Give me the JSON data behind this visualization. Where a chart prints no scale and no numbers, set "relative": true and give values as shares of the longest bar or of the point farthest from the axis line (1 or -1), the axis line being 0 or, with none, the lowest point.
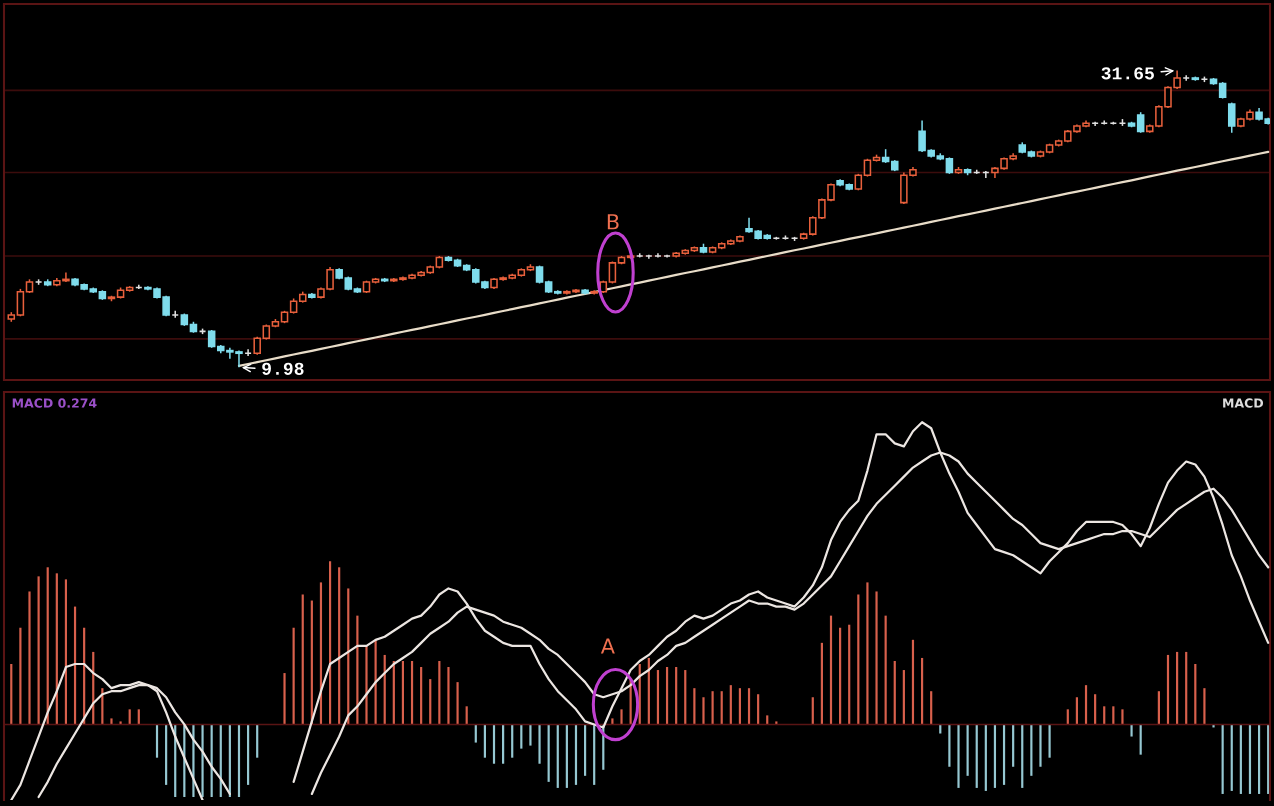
{
  "chart_data": [
    {
      "type": "candlestick",
      "categories": [
        null,
        null,
        null,
        null,
        null,
        null,
        null,
        null,
        null,
        null,
        null,
        null,
        null,
        null,
        null,
        null,
        null,
        null,
        null,
        null,
        null,
        null,
        null,
        null,
        null,
        null,
        null,
        null,
        null,
        null,
        null,
        null,
        null,
        null,
        null,
        null,
        null,
        null,
        null,
        null,
        null,
        null,
        null,
        null,
        null,
        null,
        null,
        null,
        null,
        null,
        null,
        null,
        null,
        null,
        null,
        null,
        null,
        null,
        null,
        null,
        null,
        null,
        null,
        null,
        null,
        null,
        null,
        null,
        null,
        null,
        null,
        null,
        null,
        null,
        null,
        null,
        null,
        null,
        null,
        null,
        null,
        null,
        null,
        null,
        null,
        null,
        null,
        null,
        null,
        null,
        null,
        null,
        null,
        null,
        null,
        null,
        null,
        null,
        null,
        null,
        null,
        null,
        null,
        null,
        null,
        null,
        null,
        null,
        null,
        null,
        null,
        null,
        null,
        null,
        null,
        null,
        null,
        null,
        null,
        null,
        null,
        null,
        null,
        null,
        null,
        null,
        null,
        null,
        null,
        null,
        null,
        null,
        null,
        null,
        null,
        null,
        null,
        null,
        null
      ],
      "ohlc": [
        [
          13.5,
          14.0,
          13.3,
          13.8
        ],
        [
          13.8,
          15.7,
          13.7,
          15.5
        ],
        [
          15.5,
          16.4,
          15.4,
          16.2
        ],
        [
          16.2,
          16.4,
          16.0,
          16.2
        ],
        [
          16.2,
          16.4,
          15.9,
          16.0
        ],
        [
          16.0,
          16.5,
          15.9,
          16.3
        ],
        [
          16.3,
          16.9,
          16.2,
          16.4
        ],
        [
          16.4,
          16.5,
          15.9,
          16.0
        ],
        [
          16.0,
          16.1,
          15.6,
          15.7
        ],
        [
          15.7,
          15.8,
          15.4,
          15.5
        ],
        [
          15.5,
          15.6,
          14.9,
          15.0
        ],
        [
          15.0,
          15.2,
          14.8,
          15.1
        ],
        [
          15.1,
          15.8,
          15.0,
          15.6
        ],
        [
          15.6,
          15.9,
          15.5,
          15.8
        ],
        [
          15.8,
          16.0,
          15.7,
          15.8
        ],
        [
          15.8,
          15.9,
          15.6,
          15.7
        ],
        [
          15.7,
          15.8,
          15.0,
          15.1
        ],
        [
          15.1,
          15.2,
          13.7,
          13.8
        ],
        [
          13.8,
          14.1,
          13.6,
          13.8
        ],
        [
          13.8,
          13.9,
          13.0,
          13.1
        ],
        [
          13.1,
          13.3,
          12.5,
          12.6
        ],
        [
          12.6,
          12.8,
          12.4,
          12.6
        ],
        [
          12.6,
          12.7,
          11.4,
          11.5
        ],
        [
          11.5,
          11.6,
          11.0,
          11.2
        ],
        [
          11.2,
          11.4,
          10.6,
          11.1
        ],
        [
          11.1,
          11.2,
          9.98,
          11.0
        ],
        [
          11.0,
          11.3,
          10.8,
          11.0
        ],
        [
          11.0,
          12.2,
          10.9,
          12.1
        ],
        [
          12.1,
          13.1,
          12.0,
          13.0
        ],
        [
          13.0,
          13.5,
          12.9,
          13.3
        ],
        [
          13.3,
          14.1,
          13.2,
          14.0
        ],
        [
          14.0,
          15.0,
          13.9,
          14.8
        ],
        [
          14.8,
          15.5,
          14.7,
          15.3
        ],
        [
          15.3,
          15.4,
          15.0,
          15.1
        ],
        [
          15.1,
          15.8,
          15.0,
          15.7
        ],
        [
          15.7,
          17.3,
          15.6,
          17.1
        ],
        [
          17.1,
          17.2,
          16.4,
          16.5
        ],
        [
          16.5,
          16.6,
          15.6,
          15.7
        ],
        [
          15.7,
          15.8,
          15.4,
          15.5
        ],
        [
          15.5,
          16.3,
          15.4,
          16.2
        ],
        [
          16.2,
          16.5,
          16.1,
          16.4
        ],
        [
          16.4,
          16.5,
          16.2,
          16.3
        ],
        [
          16.3,
          16.5,
          16.2,
          16.4
        ],
        [
          16.4,
          16.6,
          16.3,
          16.5
        ],
        [
          16.5,
          16.8,
          16.4,
          16.7
        ],
        [
          16.7,
          17.0,
          16.6,
          16.9
        ],
        [
          16.9,
          17.4,
          16.8,
          17.3
        ],
        [
          17.3,
          18.1,
          17.2,
          18.0
        ],
        [
          18.0,
          18.1,
          17.7,
          17.8
        ],
        [
          17.8,
          17.9,
          17.3,
          17.4
        ],
        [
          17.4,
          17.5,
          17.0,
          17.1
        ],
        [
          17.1,
          17.2,
          16.1,
          16.2
        ],
        [
          16.2,
          16.3,
          15.7,
          15.8
        ],
        [
          15.8,
          16.5,
          15.7,
          16.4
        ],
        [
          16.4,
          16.6,
          16.3,
          16.5
        ],
        [
          16.5,
          16.8,
          16.4,
          16.7
        ],
        [
          16.7,
          17.2,
          16.6,
          17.1
        ],
        [
          17.1,
          17.5,
          17.0,
          17.3
        ],
        [
          17.3,
          17.4,
          16.1,
          16.2
        ],
        [
          16.2,
          16.3,
          15.4,
          15.5
        ],
        [
          15.5,
          15.6,
          15.3,
          15.4
        ],
        [
          15.4,
          15.6,
          15.3,
          15.5
        ],
        [
          15.5,
          15.7,
          15.4,
          15.6
        ],
        [
          15.6,
          15.7,
          15.3,
          15.4
        ],
        [
          15.4,
          15.6,
          15.3,
          15.5
        ],
        [
          15.5,
          16.3,
          15.4,
          16.2
        ],
        [
          16.2,
          17.7,
          16.1,
          17.6
        ],
        [
          17.6,
          18.1,
          17.5,
          18.0
        ],
        [
          18.0,
          18.2,
          17.9,
          18.1
        ],
        [
          18.1,
          18.3,
          18.0,
          18.1
        ],
        [
          18.1,
          18.2,
          17.9,
          18.1
        ],
        [
          18.1,
          18.3,
          18.0,
          18.1
        ],
        [
          18.1,
          18.2,
          18.0,
          18.1
        ],
        [
          18.1,
          18.4,
          18.0,
          18.3
        ],
        [
          18.3,
          18.6,
          18.2,
          18.5
        ],
        [
          18.5,
          18.8,
          18.4,
          18.7
        ],
        [
          18.7,
          19.0,
          18.3,
          18.4
        ],
        [
          18.4,
          18.8,
          18.3,
          18.7
        ],
        [
          18.7,
          19.1,
          18.6,
          19.0
        ],
        [
          19.0,
          19.3,
          18.9,
          19.2
        ],
        [
          19.2,
          19.6,
          19.1,
          19.5
        ],
        [
          20.1,
          20.9,
          19.8,
          19.9
        ],
        [
          19.9,
          20.0,
          19.3,
          19.4
        ],
        [
          19.6,
          19.7,
          19.3,
          19.4
        ],
        [
          19.4,
          19.5,
          19.3,
          19.4
        ],
        [
          19.4,
          19.6,
          19.3,
          19.4
        ],
        [
          19.4,
          19.5,
          19.2,
          19.4
        ],
        [
          19.4,
          19.8,
          19.3,
          19.7
        ],
        [
          19.7,
          21.0,
          19.6,
          20.9
        ],
        [
          20.9,
          22.3,
          20.8,
          22.2
        ],
        [
          22.2,
          23.4,
          22.1,
          23.3
        ],
        [
          23.6,
          23.7,
          23.2,
          23.3
        ],
        [
          23.3,
          23.4,
          22.9,
          23.0
        ],
        [
          23.0,
          24.1,
          22.9,
          24.0
        ],
        [
          24.0,
          25.2,
          23.9,
          25.1
        ],
        [
          25.1,
          25.5,
          25.0,
          25.3
        ],
        [
          25.3,
          25.9,
          24.9,
          25.0
        ],
        [
          25.0,
          25.1,
          24.3,
          24.4
        ],
        [
          22.0,
          24.2,
          21.9,
          24.0
        ],
        [
          24.0,
          24.6,
          23.9,
          24.4
        ],
        [
          27.2,
          28.0,
          25.7,
          25.8
        ],
        [
          25.8,
          25.9,
          25.3,
          25.4
        ],
        [
          25.4,
          25.6,
          25.1,
          25.2
        ],
        [
          25.2,
          25.3,
          24.1,
          24.2
        ],
        [
          24.2,
          24.6,
          24.1,
          24.4
        ],
        [
          24.4,
          24.5,
          24.0,
          24.2
        ],
        [
          24.2,
          24.4,
          24.1,
          24.2
        ],
        [
          24.2,
          24.3,
          23.8,
          24.2
        ],
        [
          24.2,
          24.6,
          23.8,
          24.5
        ],
        [
          24.5,
          25.3,
          24.4,
          25.2
        ],
        [
          25.2,
          25.6,
          25.1,
          25.4
        ],
        [
          26.2,
          26.4,
          25.6,
          25.7
        ],
        [
          25.7,
          25.8,
          25.3,
          25.4
        ],
        [
          25.4,
          25.8,
          25.3,
          25.7
        ],
        [
          25.7,
          26.3,
          25.6,
          26.2
        ],
        [
          26.2,
          26.6,
          26.1,
          26.5
        ],
        [
          26.5,
          27.3,
          26.4,
          27.2
        ],
        [
          27.2,
          27.7,
          27.1,
          27.6
        ],
        [
          27.6,
          28.0,
          27.5,
          27.8
        ],
        [
          27.8,
          27.9,
          27.6,
          27.8
        ],
        [
          27.8,
          28.0,
          27.7,
          27.8
        ],
        [
          27.8,
          27.9,
          27.7,
          27.8
        ],
        [
          27.8,
          28.1,
          27.6,
          27.8
        ],
        [
          27.8,
          27.9,
          27.5,
          27.6
        ],
        [
          28.4,
          28.6,
          27.1,
          27.2
        ],
        [
          27.2,
          27.7,
          27.1,
          27.6
        ],
        [
          27.6,
          29.1,
          27.5,
          29.0
        ],
        [
          29.0,
          30.5,
          28.9,
          30.4
        ],
        [
          30.4,
          31.65,
          30.3,
          31.1
        ],
        [
          31.1,
          31.3,
          30.9,
          31.1
        ],
        [
          31.1,
          31.2,
          30.9,
          31.0
        ],
        [
          31.0,
          31.2,
          30.8,
          31.0
        ],
        [
          31.0,
          31.1,
          30.6,
          30.7
        ],
        [
          30.7,
          30.8,
          29.6,
          29.7
        ],
        [
          29.2,
          29.3,
          27.1,
          27.6
        ],
        [
          27.6,
          28.2,
          27.5,
          28.1
        ],
        [
          28.1,
          28.8,
          28.0,
          28.6
        ],
        [
          28.6,
          28.9,
          28.0,
          28.1
        ],
        [
          28.1,
          28.2,
          27.7,
          27.8
        ]
      ],
      "colors": [
        "#e8603c",
        "#e8603c",
        "#e8603c",
        "#e0e0e0",
        "#7fdcec",
        "#e8603c",
        "#e8603c",
        "#7fdcec",
        "#7fdcec",
        "#7fdcec",
        "#7fdcec",
        "#e8603c",
        "#e8603c",
        "#e8603c",
        "#e0e0e0",
        "#7fdcec",
        "#7fdcec",
        "#7fdcec",
        "#e0e0e0",
        "#7fdcec",
        "#7fdcec",
        "#e0e0e0",
        "#7fdcec",
        "#7fdcec",
        "#7fdcec",
        "#7fdcec",
        "#e0e0e0",
        "#e8603c",
        "#e8603c",
        "#e8603c",
        "#e8603c",
        "#e8603c",
        "#e8603c",
        "#7fdcec",
        "#e8603c",
        "#e8603c",
        "#7fdcec",
        "#7fdcec",
        "#7fdcec",
        "#e8603c",
        "#e8603c",
        "#7fdcec",
        "#e8603c",
        "#e8603c",
        "#e8603c",
        "#e8603c",
        "#e8603c",
        "#e8603c",
        "#7fdcec",
        "#7fdcec",
        "#7fdcec",
        "#7fdcec",
        "#7fdcec",
        "#e8603c",
        "#e8603c",
        "#e8603c",
        "#e8603c",
        "#e8603c",
        "#7fdcec",
        "#7fdcec",
        "#7fdcec",
        "#e8603c",
        "#e8603c",
        "#7fdcec",
        "#e8603c",
        "#e8603c",
        "#e8603c",
        "#e8603c",
        "#e8603c",
        "#e0e0e0",
        "#e0e0e0",
        "#e0e0e0",
        "#e0e0e0",
        "#e8603c",
        "#e8603c",
        "#e8603c",
        "#7fdcec",
        "#e8603c",
        "#e8603c",
        "#e8603c",
        "#e8603c",
        "#7fdcec",
        "#7fdcec",
        "#7fdcec",
        "#e0e0e0",
        "#e0e0e0",
        "#e0e0e0",
        "#e8603c",
        "#e8603c",
        "#e8603c",
        "#e8603c",
        "#7fdcec",
        "#7fdcec",
        "#e8603c",
        "#e8603c",
        "#e8603c",
        "#7fdcec",
        "#7fdcec",
        "#e8603c",
        "#e8603c",
        "#7fdcec",
        "#7fdcec",
        "#7fdcec",
        "#7fdcec",
        "#e8603c",
        "#7fdcec",
        "#e0e0e0",
        "#e0e0e0",
        "#e8603c",
        "#e8603c",
        "#e8603c",
        "#7fdcec",
        "#7fdcec",
        "#e8603c",
        "#e8603c",
        "#e8603c",
        "#e8603c",
        "#e8603c",
        "#e8603c",
        "#e0e0e0",
        "#e0e0e0",
        "#e0e0e0",
        "#e0e0e0",
        "#7fdcec",
        "#7fdcec",
        "#e8603c",
        "#e8603c",
        "#e8603c",
        "#e8603c",
        "#e0e0e0",
        "#7fdcec",
        "#e0e0e0",
        "#7fdcec",
        "#7fdcec",
        "#7fdcec",
        "#e8603c",
        "#e8603c",
        "#7fdcec",
        "#7fdcec"
      ],
      "series": [
        {
          "type": "line",
          "color": "#e8dcc8",
          "values": [
            null,
            null,
            null,
            null,
            null,
            null,
            null,
            null,
            null,
            null,
            null,
            null,
            null,
            null,
            null,
            null,
            null,
            null,
            null,
            null,
            null,
            null,
            null,
            null,
            null,
            10.08,
            10.22,
            10.35,
            10.49,
            10.63,
            10.77,
            10.91,
            11.05,
            11.18,
            11.32,
            11.46,
            11.6,
            11.74,
            11.88,
            12.01,
            12.15,
            12.29,
            12.43,
            12.57,
            12.71,
            12.84,
            12.98,
            13.12,
            13.26,
            13.4,
            13.54,
            13.67,
            13.81,
            13.95,
            14.09,
            14.23,
            14.37,
            14.5,
            14.64,
            14.78,
            14.92,
            15.06,
            15.2,
            15.33,
            15.47,
            15.61,
            15.75,
            15.89,
            16.03,
            16.16,
            16.3,
            16.44,
            16.58,
            16.72,
            16.86,
            16.99,
            17.13,
            17.27,
            17.41,
            17.55,
            17.69,
            17.82,
            17.96,
            18.1,
            18.24,
            18.38,
            18.52,
            18.65,
            18.79,
            18.93,
            19.07,
            19.21,
            19.35,
            19.48,
            19.62,
            19.76,
            19.9,
            20.04,
            20.18,
            20.31,
            20.45,
            20.59,
            20.73,
            20.87,
            21.01,
            21.14,
            21.28,
            21.42,
            21.56,
            21.7,
            21.84,
            21.97,
            22.11,
            22.25,
            22.39,
            22.53,
            22.67,
            22.8,
            22.94,
            23.08,
            23.22,
            23.36,
            23.5,
            23.63,
            23.77,
            23.91,
            24.05,
            24.19,
            24.33,
            24.46,
            24.6,
            24.74,
            24.88,
            25.02,
            25.16,
            25.29,
            25.43,
            25.57,
            25.71
          ]
        }
      ],
      "ylim": [
        9.05,
        36.5
      ],
      "yticks": [
        {
          "value": 12.05,
          "label": null
        },
        {
          "value": 18.1,
          "label": null
        },
        {
          "value": 24.2,
          "label": null
        },
        {
          "value": 30.2,
          "label": null
        }
      ],
      "grid": "y",
      "annotations": [
        "31.65",
        "9.98",
        "B"
      ]
    },
    {
      "type": "bar",
      "relative": true,
      "categories": [
        null,
        null,
        null,
        null,
        null,
        null,
        null,
        null,
        null,
        null,
        null,
        null,
        null,
        null,
        null,
        null,
        null,
        null,
        null,
        null,
        null,
        null,
        null,
        null,
        null,
        null,
        null,
        null,
        null,
        null,
        null,
        null,
        null,
        null,
        null,
        null,
        null,
        null,
        null,
        null,
        null,
        null,
        null,
        null,
        null,
        null,
        null,
        null,
        null,
        null,
        null,
        null,
        null,
        null,
        null,
        null,
        null,
        null,
        null,
        null,
        null,
        null,
        null,
        null,
        null,
        null,
        null,
        null,
        null,
        null,
        null,
        null,
        null,
        null,
        null,
        null,
        null,
        null,
        null,
        null,
        null,
        null,
        null,
        null,
        null,
        null,
        null,
        null,
        null,
        null,
        null,
        null,
        null,
        null,
        null,
        null,
        null,
        null,
        null,
        null,
        null,
        null,
        null,
        null,
        null,
        null,
        null,
        null,
        null,
        null,
        null,
        null,
        null,
        null,
        null,
        null,
        null,
        null,
        null,
        null,
        null,
        null,
        null,
        null,
        null,
        null,
        null,
        null,
        null,
        null,
        null,
        null,
        null,
        null,
        null,
        null,
        null,
        null,
        null
      ],
      "series": [
        {
          "type": "bar",
          "values": [
            0.2,
            0.32,
            0.44,
            0.49,
            0.52,
            0.5,
            0.48,
            0.39,
            0.32,
            0.24,
            0.12,
            0.02,
            0.01,
            0.05,
            0.05,
            0,
            -0.11,
            -0.2,
            -0.24,
            -0.24,
            -0.24,
            -0.24,
            -0.24,
            -0.24,
            -0.24,
            -0.24,
            -0.2,
            -0.11,
            0,
            0,
            0.17,
            0.32,
            0.43,
            0.41,
            0.47,
            0.54,
            0.52,
            0.45,
            0.36,
            0.26,
            0.28,
            0.23,
            0.21,
            0.21,
            0.21,
            0.19,
            0.15,
            0.21,
            0.19,
            0.14,
            0.06,
            -0.06,
            -0.11,
            -0.13,
            -0.13,
            -0.11,
            -0.08,
            -0.07,
            -0.13,
            -0.19,
            -0.21,
            -0.21,
            -0.2,
            -0.17,
            -0.2,
            -0.15,
            0.02,
            0.05,
            0.15,
            0.2,
            0.22,
            0.18,
            0.19,
            0.19,
            0.18,
            0.12,
            0.09,
            0.11,
            0.11,
            0.13,
            0.12,
            0.12,
            0.1,
            0.03,
            0.01,
            0,
            0,
            0,
            0.09,
            0.27,
            0.36,
            0.32,
            0.33,
            0.43,
            0.47,
            0.44,
            0.36,
            0.21,
            0.18,
            0.28,
            0.22,
            0.11,
            -0.03,
            -0.14,
            -0.21,
            -0.17,
            -0.21,
            -0.22,
            -0.21,
            -0.2,
            -0.14,
            -0.21,
            -0.17,
            -0.14,
            -0.11,
            0,
            0.05,
            0.09,
            0.13,
            0.1,
            0.06,
            0.06,
            0.05,
            -0.04,
            -0.1,
            0,
            0.11,
            0.23,
            0.24,
            0.24,
            0.2,
            0.12,
            -0.01,
            -0.23,
            -0.22,
            -0.23,
            -0.23,
            -0.23,
            -0.23
          ],
          "colors": [
            "#d8604c",
            "#d8604c",
            "#d8604c",
            "#d8604c",
            "#d8604c",
            "#d8604c",
            "#d8604c",
            "#d8604c",
            "#d8604c",
            "#d8604c",
            "#d8604c",
            "#d8604c",
            "#d8604c",
            "#d8604c",
            "#d8604c",
            "#d8604c",
            "#96c8d2",
            "#96c8d2",
            "#96c8d2",
            "#96c8d2",
            "#96c8d2",
            "#96c8d2",
            "#96c8d2",
            "#96c8d2",
            "#96c8d2",
            "#96c8d2",
            "#96c8d2",
            "#96c8d2",
            "#d8604c",
            "#d8604c",
            "#d8604c",
            "#d8604c",
            "#d8604c",
            "#d8604c",
            "#d8604c",
            "#d8604c",
            "#d8604c",
            "#d8604c",
            "#d8604c",
            "#d8604c",
            "#d8604c",
            "#d8604c",
            "#d8604c",
            "#d8604c",
            "#d8604c",
            "#d8604c",
            "#d8604c",
            "#d8604c",
            "#d8604c",
            "#d8604c",
            "#d8604c",
            "#96c8d2",
            "#96c8d2",
            "#96c8d2",
            "#96c8d2",
            "#96c8d2",
            "#96c8d2",
            "#96c8d2",
            "#96c8d2",
            "#96c8d2",
            "#96c8d2",
            "#96c8d2",
            "#96c8d2",
            "#96c8d2",
            "#96c8d2",
            "#96c8d2",
            "#d8604c",
            "#d8604c",
            "#d8604c",
            "#d8604c",
            "#d8604c",
            "#d8604c",
            "#d8604c",
            "#d8604c",
            "#d8604c",
            "#d8604c",
            "#d8604c",
            "#d8604c",
            "#d8604c",
            "#d8604c",
            "#d8604c",
            "#d8604c",
            "#d8604c",
            "#d8604c",
            "#d8604c",
            "#d8604c",
            "#d8604c",
            "#d8604c",
            "#d8604c",
            "#d8604c",
            "#d8604c",
            "#d8604c",
            "#d8604c",
            "#d8604c",
            "#d8604c",
            "#d8604c",
            "#d8604c",
            "#d8604c",
            "#d8604c",
            "#d8604c",
            "#d8604c",
            "#d8604c",
            "#96c8d2",
            "#96c8d2",
            "#96c8d2",
            "#96c8d2",
            "#96c8d2",
            "#96c8d2",
            "#96c8d2",
            "#96c8d2",
            "#96c8d2",
            "#96c8d2",
            "#96c8d2",
            "#96c8d2",
            "#96c8d2",
            "#d8604c",
            "#d8604c",
            "#d8604c",
            "#d8604c",
            "#d8604c",
            "#d8604c",
            "#d8604c",
            "#d8604c",
            "#96c8d2",
            "#96c8d2",
            "#d8604c",
            "#d8604c",
            "#d8604c",
            "#d8604c",
            "#d8604c",
            "#d8604c",
            "#d8604c",
            "#96c8d2",
            "#96c8d2",
            "#96c8d2",
            "#96c8d2",
            "#96c8d2",
            "#96c8d2",
            "#96c8d2"
          ]
        },
        {
          "type": "line",
          "color": "#ece6e2",
          "values": [
            -0.25,
            -0.2,
            -0.12,
            -0.04,
            0.04,
            0.11,
            0.19,
            0.2,
            0.2,
            0.17,
            0.15,
            0.12,
            0.13,
            0.13,
            0.14,
            0.13,
            0.11,
            0.04,
            -0.04,
            -0.11,
            -0.18,
            -0.25,
            null,
            null,
            null,
            null,
            null,
            null,
            null,
            null,
            null,
            -0.19,
            -0.09,
            0.01,
            0.11,
            0.2,
            0.22,
            0.24,
            0.26,
            0.26,
            0.28,
            0.29,
            0.31,
            0.33,
            0.35,
            0.36,
            0.39,
            0.43,
            0.45,
            0.44,
            0.4,
            0.35,
            0.31,
            0.29,
            0.27,
            0.26,
            0.26,
            0.26,
            0.2,
            0.15,
            0.11,
            0.08,
            0.05,
            0.01,
            0.0,
            -0.01,
            0.06,
            0.12,
            0.18,
            0.21,
            0.23,
            0.26,
            0.29,
            0.31,
            0.34,
            0.36,
            0.35,
            0.36,
            0.38,
            0.4,
            0.41,
            0.43,
            0.44,
            0.42,
            0.41,
            0.4,
            0.39,
            0.42,
            0.46,
            0.52,
            0.61,
            0.67,
            0.71,
            0.74,
            0.84,
            0.96,
            0.96,
            0.93,
            0.92,
            0.97,
            1.0,
            0.98,
            0.9,
            0.83,
            0.77,
            0.7,
            0.66,
            0.62,
            0.58,
            0.57,
            0.56,
            0.54,
            0.52,
            0.5,
            0.54,
            0.57,
            0.6,
            0.64,
            0.67,
            0.67,
            0.67,
            0.67,
            0.66,
            0.63,
            0.59,
            0.65,
            0.73,
            0.8,
            0.84,
            0.87,
            0.86,
            0.82,
            0.75,
            0.66,
            0.56,
            0.49,
            0.41,
            0.34,
            0.27
          ]
        },
        {
          "type": "line",
          "color": "#ece6e2",
          "values": [
            null,
            null,
            null,
            -0.24,
            -0.19,
            -0.13,
            -0.08,
            -0.03,
            0.02,
            0.07,
            0.1,
            0.11,
            0.11,
            0.12,
            0.13,
            0.13,
            0.12,
            0.09,
            0.04,
            0.0,
            -0.05,
            -0.09,
            -0.14,
            -0.18,
            -0.23,
            null,
            null,
            null,
            null,
            null,
            null,
            null,
            null,
            -0.23,
            -0.16,
            -0.1,
            -0.04,
            0.03,
            0.06,
            0.1,
            0.14,
            0.17,
            0.2,
            0.22,
            0.24,
            0.27,
            0.3,
            0.32,
            0.34,
            0.37,
            0.39,
            0.38,
            0.37,
            0.36,
            0.34,
            0.33,
            0.32,
            0.3,
            0.28,
            0.25,
            0.23,
            0.2,
            0.17,
            0.14,
            0.1,
            0.09,
            0.1,
            0.11,
            0.13,
            0.16,
            0.18,
            0.21,
            0.23,
            0.26,
            0.27,
            0.29,
            0.31,
            0.33,
            0.35,
            0.37,
            0.39,
            0.41,
            0.4,
            0.4,
            0.39,
            0.39,
            0.38,
            0.4,
            0.43,
            0.46,
            0.49,
            0.54,
            0.59,
            0.64,
            0.69,
            0.73,
            0.76,
            0.79,
            0.82,
            0.85,
            0.87,
            0.89,
            0.9,
            0.89,
            0.87,
            0.83,
            0.8,
            0.77,
            0.74,
            0.71,
            0.68,
            0.66,
            0.63,
            0.6,
            0.59,
            0.58,
            0.59,
            0.6,
            0.61,
            0.62,
            0.63,
            0.63,
            0.64,
            0.64,
            0.63,
            0.62,
            0.65,
            0.68,
            0.71,
            0.73,
            0.75,
            0.77,
            0.78,
            0.75,
            0.71,
            0.66,
            0.61,
            0.56,
            0.52
          ]
        }
      ],
      "annotations": [
        "MACD 0.274",
        "MACD",
        "A"
      ]
    }
  ]
}
